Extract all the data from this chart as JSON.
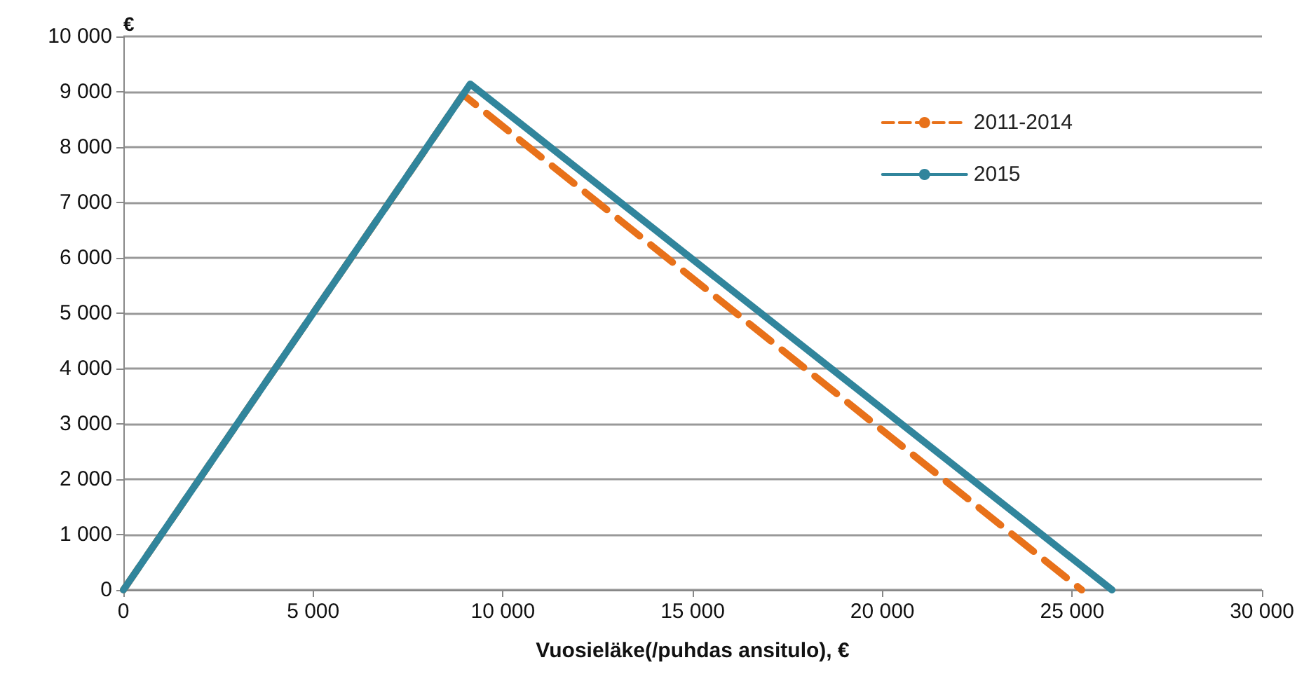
{
  "chart_data": {
    "type": "line",
    "xlabel": "Vuosieläke(/puhdas ansitulo), €",
    "ylabel": "€",
    "xlim": [
      0,
      30000
    ],
    "xticks": [
      0,
      {
        "value": 5000,
        "label": "5 000"
      },
      {
        "value": 10000,
        "label": "10 000"
      },
      {
        "value": 15000,
        "label": "15 000"
      },
      {
        "value": 20000,
        "label": "20 000"
      },
      {
        "value": 25000,
        "label": "25 000"
      },
      {
        "value": 30000,
        "label": "30 000"
      }
    ],
    "ylim": [
      0,
      10000
    ],
    "yticks": [
      0,
      {
        "value": 1000,
        "label": "1 000"
      },
      {
        "value": 2000,
        "label": "2 000"
      },
      {
        "value": 3000,
        "label": "3 000"
      },
      {
        "value": 4000,
        "label": "4 000"
      },
      {
        "value": 5000,
        "label": "5 000"
      },
      {
        "value": 6000,
        "label": "6 000"
      },
      {
        "value": 7000,
        "label": "7 000"
      },
      {
        "value": 8000,
        "label": "8 000"
      },
      {
        "value": 9000,
        "label": "9 000"
      },
      {
        "value": 10000,
        "label": "10 000"
      }
    ],
    "grid": "y",
    "legend": "top right",
    "marker": "none",
    "series": [
      {
        "name": "2011-2014",
        "color": "#e8711a",
        "line_style": "dashed",
        "x": [
          0,
          8950,
          25250
        ],
        "values": [
          0,
          8950,
          0
        ]
      },
      {
        "name": "2015",
        "color": "#31859c",
        "line_style": "solid",
        "x": [
          0,
          9140,
          26050
        ],
        "values": [
          0,
          9140,
          0
        ]
      }
    ]
  }
}
